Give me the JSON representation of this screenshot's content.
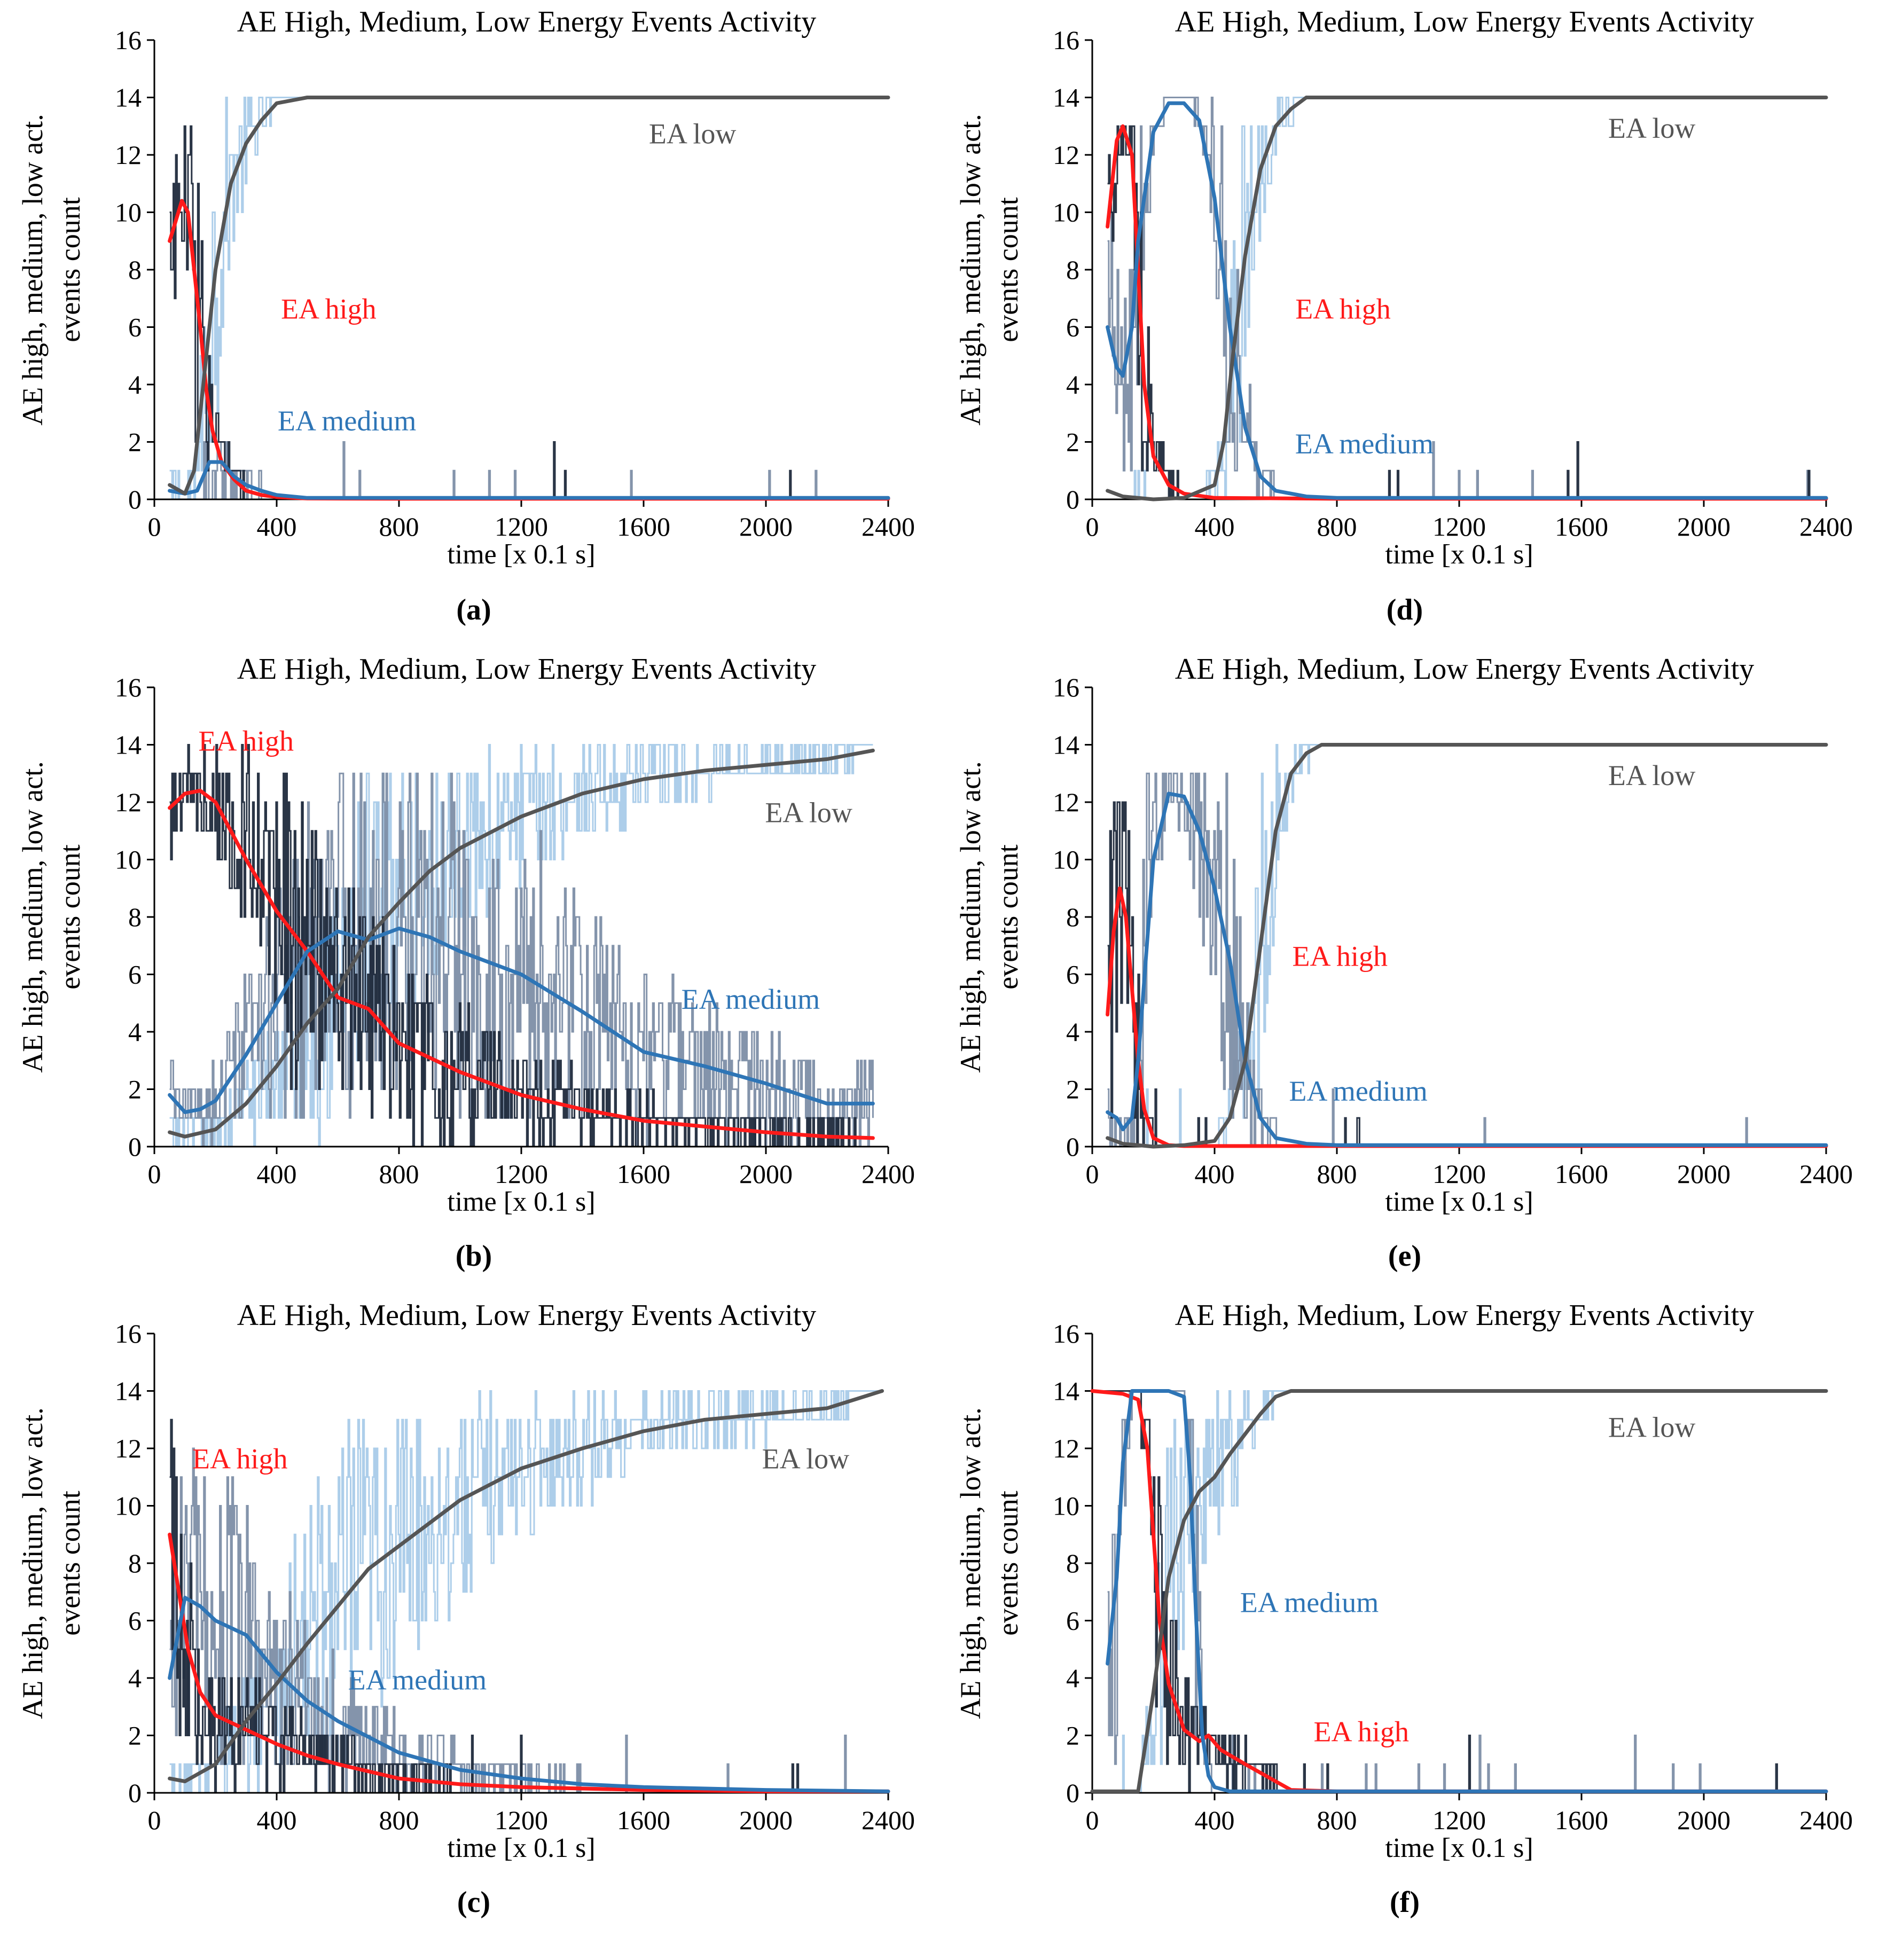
{
  "figure": {
    "panels": [
      "a",
      "b",
      "c",
      "d",
      "e",
      "f"
    ]
  },
  "colors": {
    "ea_high": "#ff1a1a",
    "ea_medium": "#2e75b6",
    "ea_low": "#555555",
    "raw_high": "#1f2a3c",
    "raw_medium": "#7d8ea6",
    "raw_low": "#a9cbe9",
    "axis": "#000000"
  },
  "chart_data": [
    {
      "id": "a",
      "type": "line",
      "title": "AE High, Medium, Low Energy Events Activity",
      "panel_label": "(a)",
      "xlabel": "time [x 0.1 s]",
      "ylabel_line1": "AE high, medium, low act.",
      "ylabel_line2": "events count",
      "xlim": [
        0,
        2400
      ],
      "ylim": [
        0,
        16
      ],
      "xticks": [
        0,
        400,
        800,
        1200,
        1600,
        2000,
        2400
      ],
      "yticks": [
        0,
        2,
        4,
        6,
        8,
        10,
        12,
        14,
        16
      ],
      "annotations": [
        {
          "text": "EA low",
          "series": "EA low",
          "x": 1760,
          "y": 12.4
        },
        {
          "text": "EA high",
          "series": "EA high",
          "x": 570,
          "y": 6.3
        },
        {
          "text": "EA medium",
          "series": "EA medium",
          "x": 630,
          "y": 2.4
        }
      ],
      "series": [
        {
          "name": "EA high",
          "x": [
            50,
            70,
            90,
            110,
            130,
            150,
            170,
            190,
            220,
            260,
            300,
            350,
            400,
            500,
            800,
            1200,
            1600,
            2000,
            2400
          ],
          "y": [
            9.0,
            9.7,
            10.4,
            10.0,
            8.0,
            6.0,
            3.8,
            2.4,
            1.3,
            0.7,
            0.3,
            0.15,
            0.08,
            0.03,
            0.02,
            0.02,
            0.02,
            0.02,
            0.02
          ]
        },
        {
          "name": "EA medium",
          "x": [
            50,
            100,
            140,
            180,
            220,
            260,
            300,
            350,
            400,
            500,
            800,
            1200,
            1600,
            2000,
            2400
          ],
          "y": [
            0.3,
            0.2,
            0.3,
            1.3,
            1.3,
            0.8,
            0.5,
            0.3,
            0.15,
            0.05,
            0.05,
            0.05,
            0.05,
            0.05,
            0.05
          ]
        },
        {
          "name": "EA low",
          "x": [
            50,
            100,
            130,
            160,
            200,
            250,
            300,
            350,
            400,
            450,
            500,
            600,
            800,
            1200,
            1600,
            2000,
            2400
          ],
          "y": [
            0.5,
            0.2,
            1.0,
            4.0,
            8.0,
            11.0,
            12.4,
            13.2,
            13.8,
            13.9,
            14.0,
            14.0,
            14.0,
            14.0,
            14.0,
            14.0,
            14.0
          ]
        }
      ]
    },
    {
      "id": "b",
      "type": "line",
      "title": "AE High, Medium, Low Energy Events Activity",
      "panel_label": "(b)",
      "xlabel": "time [x 0.1 s]",
      "ylabel_line1": "AE high, medium, low act.",
      "ylabel_line2": "events count",
      "xlim": [
        0,
        2400
      ],
      "ylim": [
        0,
        16
      ],
      "xticks": [
        0,
        400,
        800,
        1200,
        1600,
        2000,
        2400
      ],
      "yticks": [
        0,
        2,
        4,
        6,
        8,
        10,
        12,
        14,
        16
      ],
      "annotations": [
        {
          "text": "EA high",
          "series": "EA high",
          "x": 300,
          "y": 13.8
        },
        {
          "text": "EA low",
          "series": "EA low",
          "x": 2140,
          "y": 11.3
        },
        {
          "text": "EA medium",
          "series": "EA medium",
          "x": 1950,
          "y": 4.8
        }
      ],
      "series": [
        {
          "name": "EA high",
          "x": [
            50,
            100,
            150,
            200,
            300,
            400,
            500,
            600,
            700,
            800,
            1000,
            1200,
            1400,
            1600,
            1800,
            2000,
            2200,
            2350
          ],
          "y": [
            11.8,
            12.3,
            12.4,
            12.0,
            10.0,
            8.2,
            6.8,
            5.2,
            4.8,
            3.6,
            2.6,
            1.8,
            1.3,
            0.9,
            0.7,
            0.5,
            0.35,
            0.3
          ]
        },
        {
          "name": "EA medium",
          "x": [
            50,
            100,
            150,
            200,
            300,
            400,
            500,
            600,
            700,
            800,
            900,
            1000,
            1200,
            1400,
            1600,
            1800,
            2000,
            2200,
            2350
          ],
          "y": [
            1.8,
            1.2,
            1.3,
            1.6,
            3.2,
            5.0,
            6.8,
            7.5,
            7.2,
            7.6,
            7.3,
            6.8,
            6.0,
            4.7,
            3.3,
            2.8,
            2.2,
            1.5,
            1.5
          ]
        },
        {
          "name": "EA low",
          "x": [
            50,
            100,
            200,
            300,
            400,
            500,
            600,
            700,
            800,
            900,
            1000,
            1200,
            1400,
            1600,
            1800,
            2000,
            2200,
            2350
          ],
          "y": [
            0.5,
            0.35,
            0.6,
            1.5,
            2.8,
            4.3,
            5.5,
            7.3,
            8.5,
            9.6,
            10.4,
            11.5,
            12.3,
            12.8,
            13.1,
            13.3,
            13.5,
            13.8
          ]
        }
      ]
    },
    {
      "id": "c",
      "type": "line",
      "title": "AE High, Medium, Low Energy Events Activity",
      "panel_label": "(c)",
      "xlabel": "time [x 0.1 s]",
      "ylabel_line1": "AE high, medium, low act.",
      "ylabel_line2": "events count",
      "xlim": [
        0,
        2400
      ],
      "ylim": [
        0,
        16
      ],
      "xticks": [
        0,
        400,
        800,
        1200,
        1600,
        2000,
        2400
      ],
      "yticks": [
        0,
        2,
        4,
        6,
        8,
        10,
        12,
        14,
        16
      ],
      "annotations": [
        {
          "text": "EA high",
          "series": "EA high",
          "x": 280,
          "y": 11.3
        },
        {
          "text": "EA low",
          "series": "EA low",
          "x": 2130,
          "y": 11.3
        },
        {
          "text": "EA medium",
          "series": "EA medium",
          "x": 860,
          "y": 3.6
        }
      ],
      "series": [
        {
          "name": "EA high",
          "x": [
            50,
            80,
            110,
            150,
            200,
            300,
            400,
            500,
            600,
            800,
            1000,
            1200,
            1600,
            2000,
            2400
          ],
          "y": [
            9.0,
            7.0,
            5.0,
            3.5,
            2.7,
            2.2,
            1.7,
            1.3,
            1.0,
            0.5,
            0.3,
            0.2,
            0.1,
            0.05,
            0.05
          ]
        },
        {
          "name": "EA medium",
          "x": [
            50,
            100,
            150,
            200,
            300,
            400,
            500,
            600,
            800,
            1000,
            1200,
            1400,
            1600,
            2000,
            2400
          ],
          "y": [
            4.0,
            6.8,
            6.5,
            6.0,
            5.5,
            4.2,
            3.2,
            2.5,
            1.4,
            0.8,
            0.5,
            0.3,
            0.2,
            0.1,
            0.05
          ]
        },
        {
          "name": "EA low",
          "x": [
            50,
            100,
            200,
            300,
            400,
            500,
            600,
            700,
            800,
            900,
            1000,
            1200,
            1400,
            1600,
            1800,
            2000,
            2200,
            2380
          ],
          "y": [
            0.5,
            0.4,
            1.0,
            2.5,
            3.8,
            5.2,
            6.5,
            7.8,
            8.6,
            9.4,
            10.2,
            11.3,
            12.0,
            12.6,
            13.0,
            13.2,
            13.4,
            14.0
          ]
        }
      ]
    },
    {
      "id": "d",
      "type": "line",
      "title": "AE High, Medium, Low Energy Events Activity",
      "panel_label": "(d)",
      "xlabel": "time [x 0.1 s]",
      "ylabel_line1": "AE high, medium, low act.",
      "ylabel_line2": "events count",
      "xlim": [
        0,
        2400
      ],
      "ylim": [
        0,
        16
      ],
      "xticks": [
        0,
        400,
        800,
        1200,
        1600,
        2000,
        2400
      ],
      "yticks": [
        0,
        2,
        4,
        6,
        8,
        10,
        12,
        14,
        16
      ],
      "annotations": [
        {
          "text": "EA low",
          "series": "EA low",
          "x": 1830,
          "y": 12.6
        },
        {
          "text": "EA high",
          "series": "EA high",
          "x": 820,
          "y": 6.3
        },
        {
          "text": "EA medium",
          "series": "EA medium",
          "x": 890,
          "y": 1.6
        }
      ],
      "series": [
        {
          "name": "EA high",
          "x": [
            50,
            80,
            100,
            130,
            150,
            170,
            200,
            250,
            300,
            400,
            800,
            1200,
            1600,
            2000,
            2400
          ],
          "y": [
            9.5,
            12.5,
            13.0,
            12.0,
            8.0,
            4.0,
            1.5,
            0.5,
            0.2,
            0.05,
            0.02,
            0.02,
            0.02,
            0.02,
            0.02
          ]
        },
        {
          "name": "EA medium",
          "x": [
            50,
            80,
            100,
            130,
            150,
            200,
            250,
            300,
            350,
            400,
            450,
            500,
            550,
            600,
            700,
            800,
            1200,
            1600,
            2000,
            2400
          ],
          "y": [
            6.0,
            4.6,
            4.3,
            6.0,
            9.0,
            12.8,
            13.8,
            13.8,
            13.2,
            10.5,
            6.0,
            2.5,
            0.8,
            0.3,
            0.1,
            0.05,
            0.05,
            0.05,
            0.05,
            0.05
          ]
        },
        {
          "name": "EA low",
          "x": [
            50,
            100,
            200,
            300,
            400,
            430,
            460,
            500,
            550,
            600,
            650,
            700,
            800,
            1200,
            1600,
            2000,
            2400
          ],
          "y": [
            0.3,
            0.1,
            0.0,
            0.05,
            0.5,
            2.0,
            5.0,
            8.5,
            11.5,
            13.0,
            13.6,
            14.0,
            14.0,
            14.0,
            14.0,
            14.0,
            14.0
          ]
        }
      ]
    },
    {
      "id": "e",
      "type": "line",
      "title": "AE High, Medium, Low Energy Events Activity",
      "panel_label": "(e)",
      "xlabel": "time [x 0.1 s]",
      "ylabel_line1": "AE high, medium, low act.",
      "ylabel_line2": "events count",
      "xlim": [
        0,
        2400
      ],
      "ylim": [
        0,
        16
      ],
      "xticks": [
        0,
        400,
        800,
        1200,
        1600,
        2000,
        2400
      ],
      "yticks": [
        0,
        2,
        4,
        6,
        8,
        10,
        12,
        14,
        16
      ],
      "annotations": [
        {
          "text": "EA low",
          "series": "EA low",
          "x": 1830,
          "y": 12.6
        },
        {
          "text": "EA high",
          "series": "EA high",
          "x": 810,
          "y": 6.3
        },
        {
          "text": "EA medium",
          "series": "EA medium",
          "x": 870,
          "y": 1.6
        }
      ],
      "series": [
        {
          "name": "EA high",
          "x": [
            50,
            70,
            90,
            110,
            130,
            150,
            170,
            200,
            250,
            300,
            800,
            1200,
            1600,
            2000,
            2400
          ],
          "y": [
            4.6,
            7.5,
            9.0,
            8.0,
            5.5,
            3.0,
            1.3,
            0.3,
            0.05,
            0.02,
            0.02,
            0.02,
            0.02,
            0.02,
            0.02
          ]
        },
        {
          "name": "EA medium",
          "x": [
            50,
            80,
            100,
            130,
            150,
            200,
            250,
            300,
            350,
            400,
            450,
            500,
            550,
            600,
            700,
            800,
            1200,
            1600,
            2000,
            2400
          ],
          "y": [
            1.2,
            1.0,
            0.6,
            1.0,
            3.0,
            10.0,
            12.3,
            12.2,
            11.0,
            9.0,
            6.5,
            3.0,
            1.0,
            0.3,
            0.1,
            0.05,
            0.05,
            0.05,
            0.05,
            0.05
          ]
        },
        {
          "name": "EA low",
          "x": [
            50,
            100,
            200,
            300,
            400,
            450,
            500,
            550,
            600,
            650,
            700,
            750,
            800,
            1200,
            1600,
            2000,
            2400
          ],
          "y": [
            0.3,
            0.1,
            0.0,
            0.05,
            0.2,
            1.0,
            3.0,
            7.0,
            11.0,
            13.0,
            13.7,
            14.0,
            14.0,
            14.0,
            14.0,
            14.0,
            14.0
          ]
        }
      ]
    },
    {
      "id": "f",
      "type": "line",
      "title": "AE High, Medium, Low Energy Events Activity",
      "panel_label": "(f)",
      "xlabel": "time [x 0.1 s]",
      "ylabel_line1": "AE high, medium, low act.",
      "ylabel_line2": "events count",
      "xlim": [
        0,
        2400
      ],
      "ylim": [
        0,
        16
      ],
      "xticks": [
        0,
        400,
        800,
        1200,
        1600,
        2000,
        2400
      ],
      "yticks": [
        0,
        2,
        4,
        6,
        8,
        10,
        12,
        14,
        16
      ],
      "annotations": [
        {
          "text": "EA low",
          "series": "EA low",
          "x": 1830,
          "y": 12.4
        },
        {
          "text": "EA medium",
          "series": "EA medium",
          "x": 710,
          "y": 6.3
        },
        {
          "text": "EA high",
          "series": "EA high",
          "x": 880,
          "y": 1.8
        }
      ],
      "series": [
        {
          "name": "EA high",
          "x": [
            0,
            100,
            150,
            180,
            200,
            220,
            250,
            300,
            350,
            380,
            420,
            500,
            600,
            650,
            800,
            1200,
            1600,
            2000,
            2400
          ],
          "y": [
            14.0,
            13.9,
            13.7,
            12.0,
            9.0,
            6.0,
            3.8,
            2.2,
            1.8,
            2.0,
            1.5,
            1.0,
            0.4,
            0.1,
            0.05,
            0.05,
            0.05,
            0.05,
            0.05
          ]
        },
        {
          "name": "EA medium",
          "x": [
            50,
            80,
            100,
            130,
            150,
            200,
            250,
            300,
            320,
            340,
            360,
            380,
            400,
            450,
            500,
            800,
            1200,
            1600,
            2000,
            2400
          ],
          "y": [
            4.5,
            7.5,
            11.5,
            14.0,
            14.0,
            14.0,
            14.0,
            13.8,
            11.0,
            6.0,
            2.0,
            0.6,
            0.2,
            0.05,
            0.05,
            0.05,
            0.05,
            0.05,
            0.05,
            0.05
          ]
        },
        {
          "name": "EA low",
          "x": [
            0,
            150,
            200,
            250,
            300,
            350,
            400,
            450,
            500,
            550,
            600,
            650,
            700,
            800,
            1200,
            1600,
            2000,
            2400
          ],
          "y": [
            0.05,
            0.05,
            3.5,
            7.5,
            9.5,
            10.5,
            11.0,
            11.8,
            12.5,
            13.2,
            13.8,
            14.0,
            14.0,
            14.0,
            14.0,
            14.0,
            14.0,
            14.0
          ]
        }
      ]
    }
  ]
}
